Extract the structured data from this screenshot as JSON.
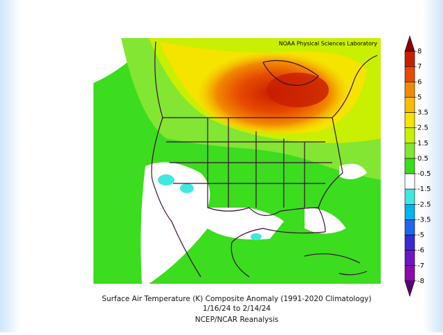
{
  "credit": "NOAA Physical Sciences Laboratory",
  "caption": {
    "line1": "Surface Air Temperature (K) Composite Anomaly (1991-2020 Climatology)",
    "line2": "1/16/24  to 2/14/24",
    "line3": "NCEP/NCAR Reanalysis"
  },
  "colorbar": {
    "ticks": [
      8,
      7,
      6,
      5,
      3.5,
      2.5,
      1.5,
      0.5,
      -0.5,
      -1.5,
      -2.5,
      -3.5,
      -5,
      -6,
      -7,
      -8
    ],
    "colors": [
      "#8b0000",
      "#c81e00",
      "#e64a00",
      "#f28a00",
      "#f7bd00",
      "#f5e300",
      "#c8f000",
      "#82e632",
      "#3cdc1e",
      "#ffffff",
      "#40e8e0",
      "#00b4f0",
      "#1e64f0",
      "#3c28d2",
      "#6e14c8",
      "#8c0aaa",
      "#5a006e"
    ]
  }
}
